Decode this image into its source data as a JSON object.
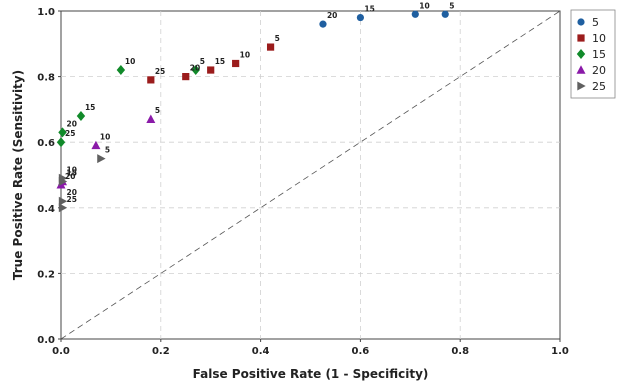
{
  "chart_data": {
    "type": "scatter",
    "xlabel": "False Positive Rate (1 - Specificity)",
    "ylabel": "True Positive Rate (Sensitivity)",
    "xlim": [
      0,
      1
    ],
    "ylim": [
      0,
      1
    ],
    "x_ticks": [
      "0.0",
      "0.2",
      "0.4",
      "0.6",
      "0.8",
      "1.0"
    ],
    "y_ticks": [
      "0.0",
      "0.2",
      "0.4",
      "0.6",
      "0.8",
      "1.0"
    ],
    "grid": true,
    "legend_position": "right-top",
    "reference_line": "diagonal",
    "series": [
      {
        "name": "5",
        "color": "#1f5fa0",
        "marker": "circle",
        "points": [
          {
            "x": 0.525,
            "y": 0.96,
            "label": "20"
          },
          {
            "x": 0.6,
            "y": 0.98,
            "label": "15"
          },
          {
            "x": 0.71,
            "y": 0.99,
            "label": "10"
          },
          {
            "x": 0.77,
            "y": 0.99,
            "label": "5"
          }
        ]
      },
      {
        "name": "10",
        "color": "#9b1c1c",
        "marker": "square",
        "points": [
          {
            "x": 0.18,
            "y": 0.79,
            "label": "25"
          },
          {
            "x": 0.25,
            "y": 0.8,
            "label": "20"
          },
          {
            "x": 0.3,
            "y": 0.82,
            "label": "15"
          },
          {
            "x": 0.35,
            "y": 0.84,
            "label": "10"
          },
          {
            "x": 0.42,
            "y": 0.89,
            "label": "5"
          }
        ]
      },
      {
        "name": "15",
        "color": "#118a2a",
        "marker": "diamond",
        "points": [
          {
            "x": 0.12,
            "y": 0.82,
            "label": "10"
          },
          {
            "x": 0.27,
            "y": 0.82,
            "label": "5"
          },
          {
            "x": 0.04,
            "y": 0.68,
            "label": "15"
          },
          {
            "x": 0.003,
            "y": 0.63,
            "label": "20"
          },
          {
            "x": 0.0,
            "y": 0.6,
            "label": "25"
          }
        ]
      },
      {
        "name": "20",
        "color": "#8a1aa8",
        "marker": "triangle",
        "points": [
          {
            "x": 0.18,
            "y": 0.67,
            "label": "5"
          },
          {
            "x": 0.07,
            "y": 0.59,
            "label": "10"
          },
          {
            "x": 0.003,
            "y": 0.48,
            "label": "15"
          },
          {
            "x": 0.0,
            "y": 0.47,
            "label": "20"
          }
        ]
      },
      {
        "name": "25",
        "color": "#606060",
        "marker": "triangle-right",
        "points": [
          {
            "x": 0.08,
            "y": 0.55,
            "label": "5"
          },
          {
            "x": 0.003,
            "y": 0.49,
            "label": "10"
          },
          {
            "x": 0.003,
            "y": 0.48,
            "label": "15"
          },
          {
            "x": 0.003,
            "y": 0.42,
            "label": "20"
          },
          {
            "x": 0.003,
            "y": 0.4,
            "label": "25"
          }
        ]
      }
    ]
  }
}
